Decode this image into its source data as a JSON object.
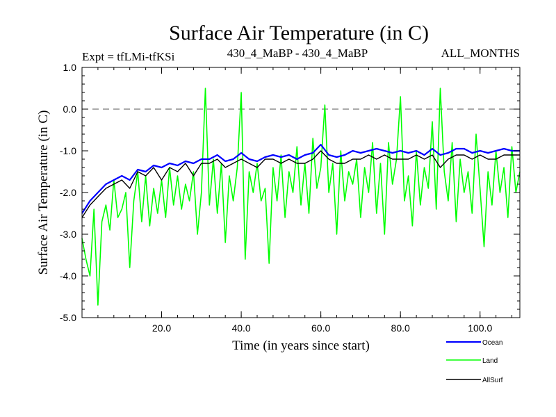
{
  "chart_data": {
    "type": "line",
    "title": "Surface Air Temperature (in C)",
    "subtitle_left": "Expt = tfLMi-tfKSi",
    "subtitle_center": "430_4_MaBP - 430_4_MaBP",
    "subtitle_right": "ALL_MONTHS",
    "xlabel": "Time (in years since start)",
    "ylabel": "Surface Air Temperature (in C)",
    "xlim": [
      0,
      110
    ],
    "ylim": [
      -5.0,
      1.0
    ],
    "x_ticks": [
      20,
      40,
      60,
      80,
      100
    ],
    "x_tick_labels": [
      "20.0",
      "40.0",
      "60.0",
      "80.0",
      "100.0"
    ],
    "y_ticks": [
      1.0,
      0.0,
      -1.0,
      -2.0,
      -3.0,
      -4.0,
      -5.0
    ],
    "y_tick_labels": [
      "1.0",
      "0.0",
      "-1.0",
      "-2.0",
      "-3.0",
      "-4.0",
      "-5.0"
    ],
    "reference_line": {
      "y": 0.0,
      "style": "dashed"
    },
    "series": [
      {
        "name": "Land",
        "color": "#00ff00",
        "x": [
          0,
          1,
          2,
          3,
          4,
          5,
          6,
          7,
          8,
          9,
          10,
          11,
          12,
          13,
          14,
          15,
          16,
          17,
          18,
          19,
          20,
          21,
          22,
          23,
          24,
          25,
          26,
          27,
          28,
          29,
          30,
          31,
          32,
          33,
          34,
          35,
          36,
          37,
          38,
          39,
          40,
          41,
          42,
          43,
          44,
          45,
          46,
          47,
          48,
          49,
          50,
          51,
          52,
          53,
          54,
          55,
          56,
          57,
          58,
          59,
          60,
          61,
          62,
          63,
          64,
          65,
          66,
          67,
          68,
          69,
          70,
          71,
          72,
          73,
          74,
          75,
          76,
          77,
          78,
          79,
          80,
          81,
          82,
          83,
          84,
          85,
          86,
          87,
          88,
          89,
          90,
          91,
          92,
          93,
          94,
          95,
          96,
          97,
          98,
          99,
          100,
          101,
          102,
          103,
          104,
          105,
          106,
          107,
          108,
          109,
          110
        ],
        "values": [
          -3.1,
          -3.6,
          -4.0,
          -2.4,
          -4.7,
          -2.7,
          -2.3,
          -2.9,
          -1.7,
          -2.6,
          -2.4,
          -2.0,
          -3.8,
          -2.2,
          -1.5,
          -2.7,
          -1.6,
          -2.8,
          -1.9,
          -2.5,
          -1.7,
          -2.6,
          -1.4,
          -2.3,
          -1.6,
          -2.4,
          -1.8,
          -2.2,
          -1.5,
          -3.0,
          -2.0,
          0.5,
          -2.3,
          -1.2,
          -2.5,
          -1.3,
          -3.2,
          -1.6,
          -2.2,
          -1.4,
          0.4,
          -3.6,
          -1.5,
          -2.0,
          -1.3,
          -2.2,
          -1.9,
          -3.7,
          -1.4,
          -2.2,
          -1.1,
          -2.6,
          -1.5,
          -2.0,
          -0.9,
          -2.3,
          -1.3,
          -2.5,
          -0.7,
          -1.9,
          -1.4,
          0.1,
          -2.0,
          -1.3,
          -3.0,
          -1.0,
          -2.2,
          -1.5,
          -1.8,
          -1.2,
          -2.6,
          -1.4,
          -2.0,
          -0.8,
          -2.5,
          -1.3,
          -3.0,
          -0.8,
          -1.8,
          -1.2,
          0.3,
          -2.2,
          -1.6,
          -2.8,
          -1.0,
          -2.3,
          -1.4,
          -1.9,
          -0.3,
          -2.4,
          0.5,
          -1.5,
          -2.2,
          -0.8,
          -2.7,
          -1.2,
          -2.0,
          -1.5,
          -2.5,
          -0.6,
          -1.9,
          -3.3,
          -1.5,
          -2.3,
          -1.0,
          -2.0,
          -1.4,
          -2.6,
          -0.9,
          -2.0,
          -1.5
        ]
      },
      {
        "name": "AllSurf",
        "color": "#000000",
        "x": [
          0,
          2,
          4,
          6,
          8,
          10,
          12,
          14,
          16,
          18,
          20,
          22,
          24,
          26,
          28,
          30,
          32,
          34,
          36,
          38,
          40,
          42,
          44,
          46,
          48,
          50,
          52,
          54,
          56,
          58,
          60,
          62,
          64,
          66,
          68,
          70,
          72,
          74,
          76,
          78,
          80,
          82,
          84,
          86,
          88,
          90,
          92,
          94,
          96,
          98,
          100,
          102,
          104,
          106,
          108,
          110
        ],
        "values": [
          -2.6,
          -2.3,
          -2.1,
          -1.9,
          -1.8,
          -1.7,
          -1.9,
          -1.5,
          -1.6,
          -1.4,
          -1.7,
          -1.4,
          -1.5,
          -1.3,
          -1.6,
          -1.3,
          -1.3,
          -1.2,
          -1.4,
          -1.3,
          -1.2,
          -1.3,
          -1.4,
          -1.2,
          -1.2,
          -1.3,
          -1.2,
          -1.3,
          -1.3,
          -1.2,
          -1.0,
          -1.2,
          -1.3,
          -1.3,
          -1.2,
          -1.2,
          -1.1,
          -1.2,
          -1.1,
          -1.2,
          -1.2,
          -1.2,
          -1.1,
          -1.2,
          -1.1,
          -1.4,
          -1.2,
          -1.1,
          -1.1,
          -1.2,
          -1.1,
          -1.2,
          -1.2,
          -1.1,
          -1.1,
          -1.1
        ]
      },
      {
        "name": "Ocean",
        "color": "#0000ff",
        "x": [
          0,
          2,
          4,
          6,
          8,
          10,
          12,
          14,
          16,
          18,
          20,
          22,
          24,
          26,
          28,
          30,
          32,
          34,
          36,
          38,
          40,
          42,
          44,
          46,
          48,
          50,
          52,
          54,
          56,
          58,
          60,
          62,
          64,
          66,
          68,
          70,
          72,
          74,
          76,
          78,
          80,
          82,
          84,
          86,
          88,
          90,
          92,
          94,
          96,
          98,
          100,
          102,
          104,
          106,
          108,
          110
        ],
        "values": [
          -2.5,
          -2.2,
          -2.0,
          -1.8,
          -1.7,
          -1.6,
          -1.7,
          -1.45,
          -1.5,
          -1.35,
          -1.4,
          -1.3,
          -1.35,
          -1.25,
          -1.3,
          -1.2,
          -1.2,
          -1.1,
          -1.25,
          -1.2,
          -1.05,
          -1.2,
          -1.25,
          -1.15,
          -1.1,
          -1.15,
          -1.1,
          -1.2,
          -1.1,
          -1.05,
          -0.85,
          -1.1,
          -1.15,
          -1.1,
          -1.0,
          -1.05,
          -1.0,
          -0.95,
          -1.0,
          -1.05,
          -1.0,
          -1.05,
          -1.0,
          -1.1,
          -0.95,
          -1.1,
          -1.05,
          -0.95,
          -0.95,
          -1.05,
          -1.0,
          -1.05,
          -1.0,
          -0.95,
          -1.0,
          -1.0
        ]
      }
    ],
    "legend": [
      {
        "name": "Ocean",
        "color": "#0000ff"
      },
      {
        "name": "Land",
        "color": "#00ff00"
      },
      {
        "name": "AllSurf",
        "color": "#000000"
      }
    ],
    "legend_position": "bottom-right"
  }
}
